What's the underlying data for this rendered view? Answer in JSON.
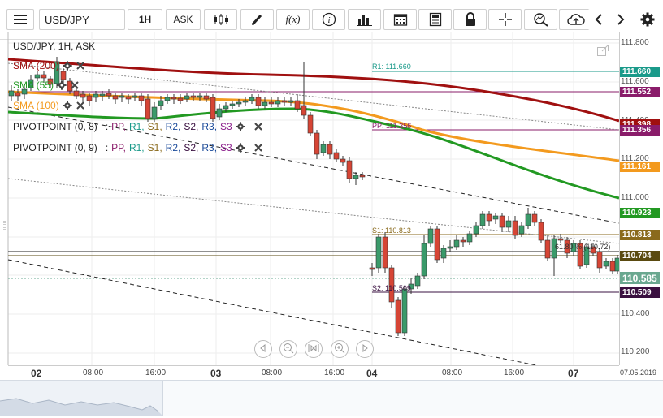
{
  "toolbar": {
    "symbol": "USD/JPY",
    "timeframe": "1H",
    "price_side": "ASK",
    "fx_label": "f(x)"
  },
  "chart": {
    "title": "USD/JPY, 1H, ASK",
    "indicators": [
      {
        "label": "SMA (200)",
        "color": "#a01010"
      },
      {
        "label": "SMA (55)",
        "color": "#229922"
      },
      {
        "label": "SMA (100)",
        "color": "#f39a1e"
      }
    ],
    "pivots": [
      {
        "name": "PIVOTPOINT (0, 8)",
        "sep": ":",
        "levels": [
          "PP,",
          "R1,",
          "S1,",
          "R2,",
          "S2,",
          "R3,",
          "S3"
        ]
      },
      {
        "name": "PIVOTPOINT (0, 9)",
        "sep": ":",
        "levels": [
          "PP,",
          "R1,",
          "S1,",
          "R2,",
          "S2,",
          "R3,",
          "S3"
        ]
      }
    ],
    "annotations": {
      "r1": "R1: 111.660",
      "pp": "PP: 111.356",
      "s1": "S1: 110.813",
      "s2": "S2: 110.509",
      "fib": "61.80 % (110.72)"
    }
  },
  "price_axis": {
    "ticks": [
      "111.800",
      "111.600",
      "111.400",
      "111.200",
      "111.000",
      "110.400",
      "110.200"
    ],
    "tags": [
      {
        "value": "111.660",
        "color": "#1a9a8a"
      },
      {
        "value": "111.552",
        "color": "#8a1c6a"
      },
      {
        "value": "111.398",
        "color": "#a01010"
      },
      {
        "value": "111.356",
        "color": "#8a1c6a"
      },
      {
        "value": "111.161",
        "color": "#f39a1e"
      },
      {
        "value": "110.923",
        "color": "#229922"
      },
      {
        "value": "110.813",
        "color": "#8a6a1c"
      },
      {
        "value": "110.704",
        "color": "#5a4a10"
      },
      {
        "value": "110.585",
        "color": "#6aa890"
      },
      {
        "value": "110.509",
        "color": "#3a1040"
      }
    ]
  },
  "time_axis": {
    "labels": [
      {
        "text": "02",
        "bold": true
      },
      {
        "text": "08:00",
        "bold": false
      },
      {
        "text": "16:00",
        "bold": false
      },
      {
        "text": "03",
        "bold": true
      },
      {
        "text": "08:00",
        "bold": false
      },
      {
        "text": "16:00",
        "bold": false
      },
      {
        "text": "04",
        "bold": true
      },
      {
        "text": "08:00",
        "bold": false
      },
      {
        "text": "16:00",
        "bold": false
      },
      {
        "text": "07",
        "bold": true
      },
      {
        "text": "07.05.2019",
        "bold": false
      }
    ]
  }
}
